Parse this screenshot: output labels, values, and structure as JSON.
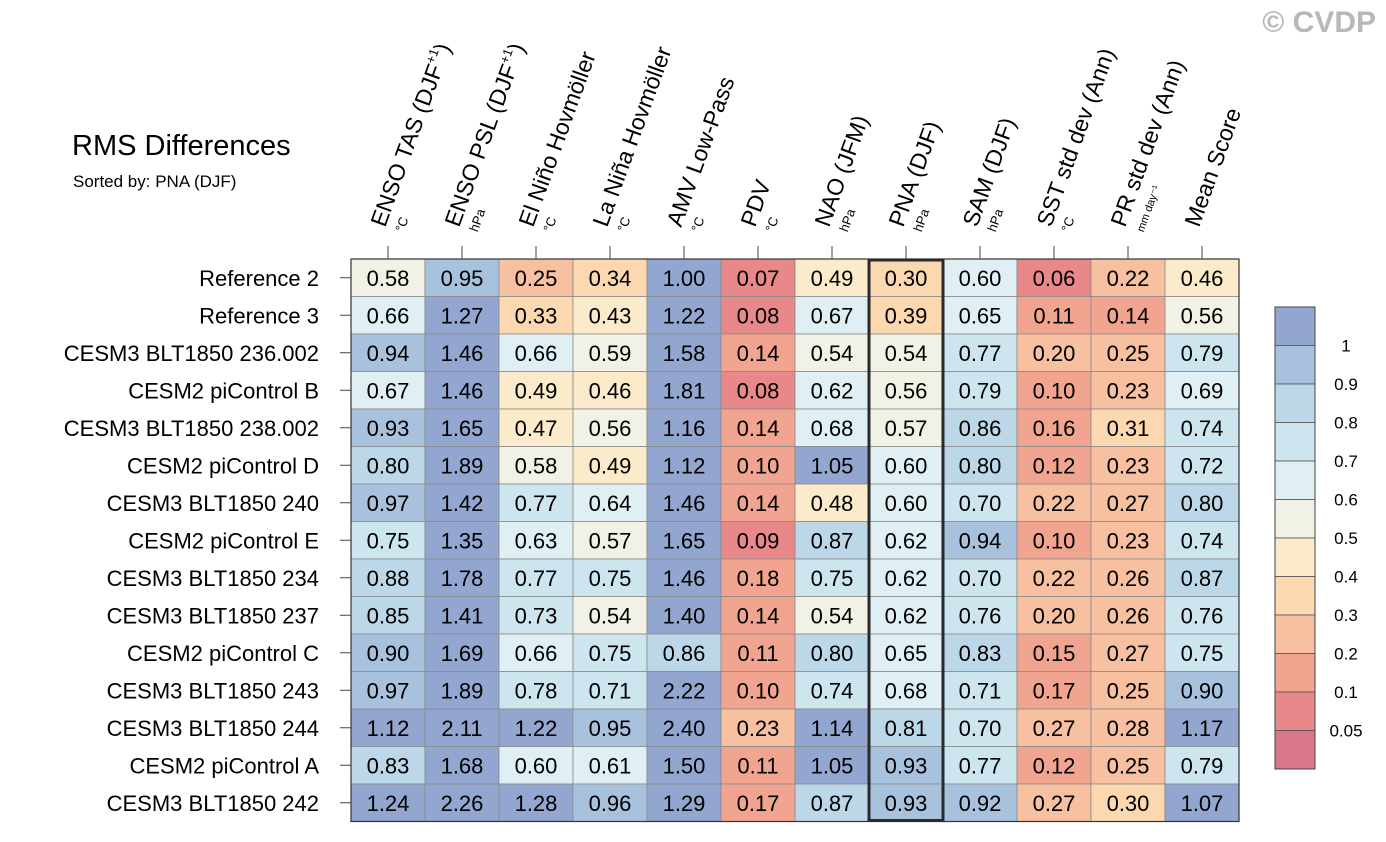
{
  "chart_data": {
    "type": "heatmap",
    "title": "RMS Differences",
    "subtitle": "Sorted by: PNA (DJF)",
    "watermark": "© CVDP",
    "sorted_by": "PNA (DJF)",
    "highlight_column": 7,
    "columns": [
      {
        "label": "ENSO TAS (DJF",
        "sup": "+1",
        "suffix": ")",
        "unit": "°C"
      },
      {
        "label": "ENSO PSL (DJF",
        "sup": "+1",
        "suffix": ")",
        "unit": "hPa"
      },
      {
        "label": "El Niño Hovmöller",
        "sup": "",
        "suffix": "",
        "unit": "°C"
      },
      {
        "label": "La Niña Hovmöller",
        "sup": "",
        "suffix": "",
        "unit": "°C"
      },
      {
        "label": "AMV Low-Pass",
        "sup": "",
        "suffix": "",
        "unit": "°C"
      },
      {
        "label": "PDV",
        "sup": "",
        "suffix": "",
        "unit": "°C"
      },
      {
        "label": "NAO (JFM)",
        "sup": "",
        "suffix": "",
        "unit": "hPa"
      },
      {
        "label": "PNA (DJF)",
        "sup": "",
        "suffix": "",
        "unit": "hPa"
      },
      {
        "label": "SAM (DJF)",
        "sup": "",
        "suffix": "",
        "unit": "hPa"
      },
      {
        "label": "SST std dev (Ann)",
        "sup": "",
        "suffix": "",
        "unit": "°C"
      },
      {
        "label": "PR std dev (Ann)",
        "sup": "",
        "suffix": "",
        "unit": "mm day⁻¹"
      },
      {
        "label": "Mean Score",
        "sup": "",
        "suffix": "",
        "unit": ""
      }
    ],
    "rows": [
      {
        "label": "Reference 2",
        "values": [
          "0.58",
          "0.95",
          "0.25",
          "0.34",
          "1.00",
          "0.07",
          "0.49",
          "0.30",
          "0.60",
          "0.06",
          "0.22",
          "0.46"
        ]
      },
      {
        "label": "Reference 3",
        "values": [
          "0.66",
          "1.27",
          "0.33",
          "0.43",
          "1.22",
          "0.08",
          "0.67",
          "0.39",
          "0.65",
          "0.11",
          "0.14",
          "0.56"
        ]
      },
      {
        "label": "CESM3 BLT1850 236.002",
        "values": [
          "0.94",
          "1.46",
          "0.66",
          "0.59",
          "1.58",
          "0.14",
          "0.54",
          "0.54",
          "0.77",
          "0.20",
          "0.25",
          "0.79"
        ]
      },
      {
        "label": "CESM2 piControl B",
        "values": [
          "0.67",
          "1.46",
          "0.49",
          "0.46",
          "1.81",
          "0.08",
          "0.62",
          "0.56",
          "0.79",
          "0.10",
          "0.23",
          "0.69"
        ]
      },
      {
        "label": "CESM3 BLT1850 238.002",
        "values": [
          "0.93",
          "1.65",
          "0.47",
          "0.56",
          "1.16",
          "0.14",
          "0.68",
          "0.57",
          "0.86",
          "0.16",
          "0.31",
          "0.74"
        ]
      },
      {
        "label": "CESM2 piControl D",
        "values": [
          "0.80",
          "1.89",
          "0.58",
          "0.49",
          "1.12",
          "0.10",
          "1.05",
          "0.60",
          "0.80",
          "0.12",
          "0.23",
          "0.72"
        ]
      },
      {
        "label": "CESM3 BLT1850 240",
        "values": [
          "0.97",
          "1.42",
          "0.77",
          "0.64",
          "1.46",
          "0.14",
          "0.48",
          "0.60",
          "0.70",
          "0.22",
          "0.27",
          "0.80"
        ]
      },
      {
        "label": "CESM2 piControl E",
        "values": [
          "0.75",
          "1.35",
          "0.63",
          "0.57",
          "1.65",
          "0.09",
          "0.87",
          "0.62",
          "0.94",
          "0.10",
          "0.23",
          "0.74"
        ]
      },
      {
        "label": "CESM3 BLT1850 234",
        "values": [
          "0.88",
          "1.78",
          "0.77",
          "0.75",
          "1.46",
          "0.18",
          "0.75",
          "0.62",
          "0.70",
          "0.22",
          "0.26",
          "0.87"
        ]
      },
      {
        "label": "CESM3 BLT1850 237",
        "values": [
          "0.85",
          "1.41",
          "0.73",
          "0.54",
          "1.40",
          "0.14",
          "0.54",
          "0.62",
          "0.76",
          "0.20",
          "0.26",
          "0.76"
        ]
      },
      {
        "label": "CESM2 piControl C",
        "values": [
          "0.90",
          "1.69",
          "0.66",
          "0.75",
          "0.86",
          "0.11",
          "0.80",
          "0.65",
          "0.83",
          "0.15",
          "0.27",
          "0.75"
        ]
      },
      {
        "label": "CESM3 BLT1850 243",
        "values": [
          "0.97",
          "1.89",
          "0.78",
          "0.71",
          "2.22",
          "0.10",
          "0.74",
          "0.68",
          "0.71",
          "0.17",
          "0.25",
          "0.90"
        ]
      },
      {
        "label": "CESM3 BLT1850 244",
        "values": [
          "1.12",
          "2.11",
          "1.22",
          "0.95",
          "2.40",
          "0.23",
          "1.14",
          "0.81",
          "0.70",
          "0.27",
          "0.28",
          "1.17"
        ]
      },
      {
        "label": "CESM2 piControl A",
        "values": [
          "0.83",
          "1.68",
          "0.60",
          "0.61",
          "1.50",
          "0.11",
          "1.05",
          "0.93",
          "0.77",
          "0.12",
          "0.25",
          "0.79"
        ]
      },
      {
        "label": "CESM3 BLT1850 242",
        "values": [
          "1.24",
          "2.26",
          "1.28",
          "0.96",
          "1.29",
          "0.17",
          "0.87",
          "0.93",
          "0.92",
          "0.27",
          "0.30",
          "1.07"
        ]
      }
    ],
    "colorbar": {
      "bounds": [
        0.05,
        0.1,
        0.2,
        0.3,
        0.4,
        0.5,
        0.6,
        0.7,
        0.8,
        0.9,
        1
      ],
      "tick_labels": [
        "1",
        "0.9",
        "0.8",
        "0.7",
        "0.6",
        "0.5",
        "0.4",
        "0.3",
        "0.2",
        "0.1",
        "0.05"
      ],
      "colors_high_to_low": [
        "#93a6cf",
        "#a8c2dd",
        "#bcd7e7",
        "#cde5ee",
        "#e0eff3",
        "#f2f1e6",
        "#fcebca",
        "#fbd8b0",
        "#f7c0a0",
        "#f1a591",
        "#e8888a",
        "#d8768a"
      ]
    }
  }
}
